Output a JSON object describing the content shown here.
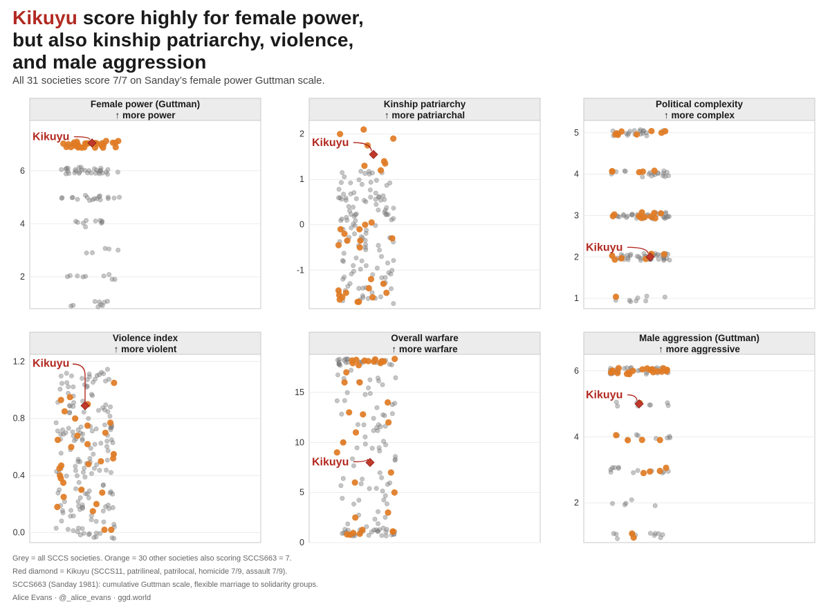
{
  "title": {
    "highlight": "Kikuyu",
    "line1_rest": " score highly for female power,",
    "line2": "but also kinship patriarchy, violence,",
    "line3": "and male aggression"
  },
  "subtitle": "All 31 societies score 7/7 on Sanday’s female power Guttman scale.",
  "caption": [
    "Grey = all SCCS societies. Orange = 30 other societies also scoring SCCS663 = 7.",
    "Red diamond = Kikuyu (SCCS11, patrilineal, patrilocal, homicide 7/9, assault 7/9).",
    "SCCS663 (Sanday 1981): cumulative Guttman scale, flexible marriage to solidarity groups.",
    "Alice Evans · @_alice_evans · ggd.world"
  ],
  "colors": {
    "grey": "#7f7f7f",
    "orange": "#e07b24",
    "red": "#c0392b",
    "label": "#b22a22",
    "strip": "#ececec"
  },
  "chart_data": [
    {
      "type": "scatter",
      "title": "Female power (Guttman)",
      "subtitle": "↑ more power",
      "ylim": [
        0.8,
        7.9
      ],
      "yticks": [
        2,
        4,
        6
      ],
      "grid": true,
      "grey_levels": [
        [
          1,
          9
        ],
        [
          2,
          9
        ],
        [
          3,
          5
        ],
        [
          4,
          10
        ],
        [
          5,
          18
        ],
        [
          6,
          32
        ]
      ],
      "orange_levels": [
        [
          7,
          30
        ]
      ],
      "kikuyu": {
        "label": "Kikuyu",
        "value": 7.05
      }
    },
    {
      "type": "scatter",
      "title": "Kinship patriarchy",
      "subtitle": "↑ more patriarchal",
      "ylim": [
        -1.85,
        2.3
      ],
      "yticks": [
        -1,
        0,
        1,
        2
      ],
      "grid": true,
      "grey_range": [
        -1.75,
        1.2
      ],
      "grey_count": 125,
      "orange_values": [
        2.1,
        2.0,
        1.9,
        1.75,
        1.4,
        1.35,
        1.3,
        1.2,
        0.05,
        -0.1,
        -0.3,
        -0.35,
        -0.45,
        -0.5,
        -0.35,
        -0.2,
        -0.1,
        0.0,
        -1.2,
        -1.3,
        -1.4,
        -1.45,
        -1.5,
        -1.55,
        -1.6,
        -1.65,
        -1.7,
        -1.7,
        -1.6,
        -1.5
      ],
      "kikuyu": {
        "label": "Kikuyu",
        "value": 1.55
      }
    },
    {
      "type": "scatter",
      "title": "Political complexity",
      "subtitle": "↑ more complex",
      "ylim": [
        0.75,
        5.3
      ],
      "yticks": [
        1,
        2,
        3,
        4,
        5
      ],
      "grid": true,
      "grey_levels": [
        [
          1,
          8
        ],
        [
          2,
          40
        ],
        [
          3,
          32
        ],
        [
          4,
          18
        ],
        [
          5,
          20
        ]
      ],
      "orange_levels": [
        [
          1,
          1
        ],
        [
          2,
          6
        ],
        [
          3,
          10
        ],
        [
          4,
          5
        ],
        [
          5,
          8
        ]
      ],
      "kikuyu": {
        "label": "Kikuyu",
        "value": 2
      }
    },
    {
      "type": "scatter",
      "title": "Violence index",
      "subtitle": "↑ more violent",
      "ylim": [
        -0.07,
        1.25
      ],
      "yticks": [
        0.0,
        0.4,
        0.8,
        1.2
      ],
      "tick_format": 1,
      "grid": true,
      "grey_range": [
        -0.06,
        1.15
      ],
      "grey_count": 165,
      "orange_values": [
        1.05,
        0.95,
        0.93,
        0.9,
        0.85,
        0.8,
        0.77,
        0.75,
        0.7,
        0.68,
        0.65,
        0.62,
        0.6,
        0.55,
        0.52,
        0.5,
        0.48,
        0.47,
        0.45,
        0.4,
        0.38,
        0.35,
        0.3,
        0.28,
        0.25,
        0.2,
        0.18,
        0.15,
        0.02,
        0.02
      ],
      "kikuyu": {
        "label": "Kikuyu",
        "value": 0.89
      }
    },
    {
      "type": "scatter",
      "title": "Overall warfare",
      "subtitle": "↑ more warfare",
      "ylim": [
        0,
        18.8
      ],
      "yticks": [
        0,
        5,
        10,
        15
      ],
      "grid": true,
      "grey_levels": [
        [
          18,
          24
        ],
        [
          1,
          28
        ]
      ],
      "grey_range": [
        1.5,
        17.5
      ],
      "grey_count": 70,
      "orange_levels": [
        [
          18,
          12
        ],
        [
          1,
          7
        ]
      ],
      "orange_values": [
        17,
        16,
        16,
        14,
        13,
        12.8,
        12,
        11,
        10,
        9,
        7,
        6,
        5,
        3,
        2.5
      ],
      "kikuyu": {
        "label": "Kikuyu",
        "value": 8
      }
    },
    {
      "type": "scatter",
      "title": "Male aggression (Guttman)",
      "subtitle": "↑ more aggressive",
      "ylim": [
        0.8,
        6.5
      ],
      "yticks": [
        2,
        4,
        6
      ],
      "grid": true,
      "grey_levels": [
        [
          1,
          12
        ],
        [
          2,
          5
        ],
        [
          3,
          12
        ],
        [
          4,
          8
        ],
        [
          5,
          8
        ],
        [
          6,
          28
        ]
      ],
      "orange_levels": [
        [
          1,
          2
        ],
        [
          3,
          4
        ],
        [
          4,
          4
        ],
        [
          5,
          1
        ],
        [
          6,
          19
        ]
      ],
      "kikuyu": {
        "label": "Kikuyu",
        "value": 5
      }
    }
  ]
}
